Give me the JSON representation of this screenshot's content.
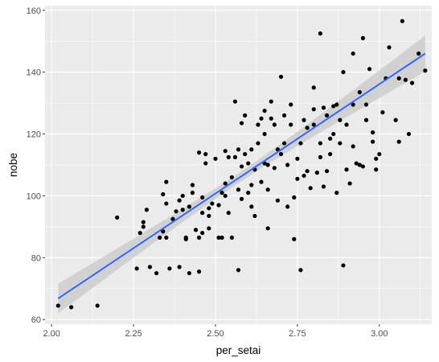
{
  "chart_data": {
    "type": "scatter",
    "xlabel": "per_setai",
    "ylabel": "nobe",
    "xlim": [
      1.98,
      3.16
    ],
    "ylim": [
      58.5,
      161.5
    ],
    "x_ticks": [
      2.0,
      2.25,
      2.5,
      2.75,
      3.0
    ],
    "x_tick_labels": [
      "2.00",
      "2.25",
      "2.50",
      "2.75",
      "3.00"
    ],
    "y_ticks": [
      60,
      80,
      100,
      120,
      140,
      160
    ],
    "y_tick_labels": [
      "60",
      "80",
      "100",
      "120",
      "140",
      "160"
    ],
    "grid": true,
    "legend": "none",
    "colors": {
      "panel_background": "#ebebeb",
      "grid": "#ffffff",
      "points": "#000000",
      "fit_line": "#3366ff",
      "confidence_band": "#cccccc"
    },
    "trend": {
      "method": "linear fit with confidence band",
      "x": [
        2.02,
        3.14
      ],
      "y": [
        66.8,
        146.0
      ],
      "band_at_start": [
        62.0,
        71.6
      ],
      "band_at_end": [
        140.2,
        151.8
      ]
    },
    "points": [
      [
        2.02,
        64.5
      ],
      [
        2.06,
        64.0
      ],
      [
        2.14,
        64.5
      ],
      [
        2.2,
        93.0
      ],
      [
        2.26,
        76.5
      ],
      [
        2.27,
        88.0
      ],
      [
        2.28,
        91.5
      ],
      [
        2.28,
        90.0
      ],
      [
        2.29,
        95.5
      ],
      [
        2.3,
        77.0
      ],
      [
        2.32,
        75.0
      ],
      [
        2.33,
        86.5
      ],
      [
        2.34,
        88.5
      ],
      [
        2.34,
        100.5
      ],
      [
        2.35,
        104.5
      ],
      [
        2.35,
        97.5
      ],
      [
        2.35,
        86.5
      ],
      [
        2.36,
        76.5
      ],
      [
        2.37,
        92.5
      ],
      [
        2.38,
        95.0
      ],
      [
        2.39,
        98.5
      ],
      [
        2.4,
        95.5
      ],
      [
        2.4,
        100.0
      ],
      [
        2.41,
        86.5
      ],
      [
        2.42,
        75.0
      ],
      [
        2.42,
        96.5
      ],
      [
        2.43,
        101.0
      ],
      [
        2.43,
        103.5
      ],
      [
        2.44,
        89.0
      ],
      [
        2.45,
        75.5
      ],
      [
        2.45,
        86.5
      ],
      [
        2.45,
        114.0
      ],
      [
        2.46,
        88.0
      ],
      [
        2.46,
        99.5
      ],
      [
        2.46,
        94.5
      ],
      [
        2.47,
        110.5
      ],
      [
        2.47,
        113.5
      ],
      [
        2.48,
        96.0
      ],
      [
        2.48,
        89.5
      ],
      [
        2.49,
        97.5
      ],
      [
        2.5,
        112.0
      ],
      [
        2.51,
        97.0
      ],
      [
        2.52,
        101.0
      ],
      [
        2.52,
        86.5
      ],
      [
        2.53,
        100.0
      ],
      [
        2.53,
        114.5
      ],
      [
        2.53,
        104.0
      ],
      [
        2.54,
        94.5
      ],
      [
        2.55,
        86.5
      ],
      [
        2.55,
        106.0
      ],
      [
        2.56,
        112.5
      ],
      [
        2.56,
        130.5
      ],
      [
        2.57,
        115.0
      ],
      [
        2.57,
        102.0
      ],
      [
        2.57,
        76.0
      ],
      [
        2.58,
        99.0
      ],
      [
        2.58,
        123.5
      ],
      [
        2.58,
        109.5
      ],
      [
        2.59,
        113.5
      ],
      [
        2.6,
        110.5
      ],
      [
        2.6,
        101.0
      ],
      [
        2.61,
        103.5
      ],
      [
        2.61,
        96.5
      ],
      [
        2.61,
        115.0
      ],
      [
        2.62,
        108.5
      ],
      [
        2.62,
        93.5
      ],
      [
        2.63,
        123.0
      ],
      [
        2.64,
        104.5
      ],
      [
        2.64,
        125.0
      ],
      [
        2.65,
        127.5
      ],
      [
        2.65,
        120.0
      ],
      [
        2.65,
        110.5
      ],
      [
        2.66,
        89.5
      ],
      [
        2.66,
        102.0
      ],
      [
        2.66,
        110.0
      ],
      [
        2.67,
        130.5
      ],
      [
        2.68,
        109.0
      ],
      [
        2.68,
        123.0
      ],
      [
        2.69,
        98.5
      ],
      [
        2.69,
        115.0
      ],
      [
        2.7,
        113.5
      ],
      [
        2.7,
        138.5
      ],
      [
        2.71,
        126.0
      ],
      [
        2.72,
        96.5
      ],
      [
        2.72,
        110.0
      ],
      [
        2.73,
        129.5
      ],
      [
        2.73,
        123.0
      ],
      [
        2.74,
        99.5
      ],
      [
        2.74,
        86.0
      ],
      [
        2.75,
        105.5
      ],
      [
        2.75,
        112.0
      ],
      [
        2.76,
        76.0
      ],
      [
        2.76,
        117.0
      ],
      [
        2.77,
        124.5
      ],
      [
        2.77,
        106.5
      ],
      [
        2.78,
        122.0
      ],
      [
        2.78,
        108.0
      ],
      [
        2.79,
        102.5
      ],
      [
        2.8,
        128.0
      ],
      [
        2.8,
        135.0
      ],
      [
        2.8,
        123.0
      ],
      [
        2.81,
        107.5
      ],
      [
        2.82,
        152.5
      ],
      [
        2.82,
        117.0
      ],
      [
        2.82,
        112.5
      ],
      [
        2.83,
        103.0
      ],
      [
        2.83,
        128.5
      ],
      [
        2.84,
        126.0
      ],
      [
        2.85,
        118.5
      ],
      [
        2.85,
        113.5
      ],
      [
        2.86,
        120.0
      ],
      [
        2.86,
        129.0
      ],
      [
        2.87,
        101.0
      ],
      [
        2.87,
        129.5
      ],
      [
        2.88,
        124.5
      ],
      [
        2.88,
        117.0
      ],
      [
        2.89,
        140.0
      ],
      [
        2.89,
        77.5
      ],
      [
        2.9,
        123.0
      ],
      [
        2.9,
        108.5
      ],
      [
        2.91,
        104.0
      ],
      [
        2.92,
        146.0
      ],
      [
        2.92,
        129.5
      ],
      [
        2.92,
        116.0
      ],
      [
        2.93,
        110.5
      ],
      [
        2.94,
        133.5
      ],
      [
        2.94,
        110.0
      ],
      [
        2.95,
        109.5
      ],
      [
        2.95,
        151.0
      ],
      [
        2.96,
        129.5
      ],
      [
        2.96,
        124.5
      ],
      [
        2.97,
        141.0
      ],
      [
        2.98,
        120.5
      ],
      [
        2.98,
        117.5
      ],
      [
        2.99,
        108.5
      ],
      [
        2.99,
        112.0
      ],
      [
        3.0,
        113.5
      ],
      [
        3.01,
        127.0
      ],
      [
        3.02,
        138.0
      ],
      [
        3.03,
        148.0
      ],
      [
        3.05,
        124.5
      ],
      [
        3.06,
        117.5
      ],
      [
        3.06,
        138.0
      ],
      [
        3.07,
        156.5
      ],
      [
        3.08,
        137.5
      ],
      [
        3.09,
        120.0
      ],
      [
        3.1,
        136.5
      ],
      [
        3.12,
        146.0
      ],
      [
        3.14,
        140.5
      ],
      [
        2.39,
        77.0
      ],
      [
        2.41,
        86.0
      ],
      [
        2.48,
        93.5
      ],
      [
        2.51,
        86.5
      ],
      [
        2.54,
        112.5
      ],
      [
        2.59,
        126.0
      ],
      [
        2.63,
        117.0
      ],
      [
        2.67,
        125.0
      ],
      [
        2.71,
        117.0
      ],
      [
        2.84,
        108.0
      ]
    ]
  }
}
